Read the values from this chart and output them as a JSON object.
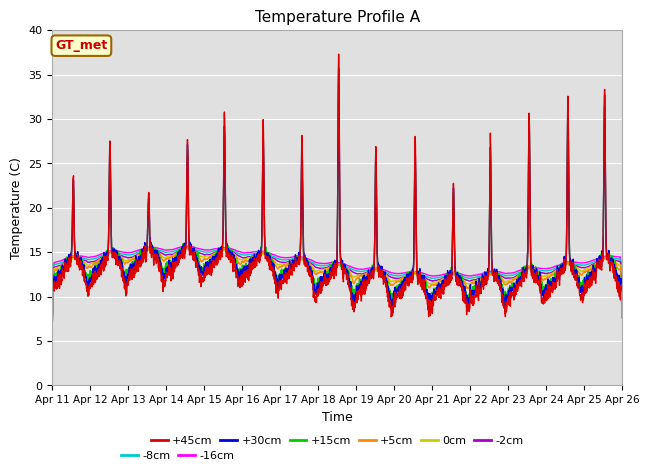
{
  "title": "Temperature Profile A",
  "xlabel": "Time",
  "ylabel": "Temperature (C)",
  "ylim": [
    0,
    40
  ],
  "annotation_text": "GT_met",
  "annotation_color": "#cc0000",
  "annotation_bg": "#ffffcc",
  "annotation_border": "#996600",
  "background_color": "#e0e0e0",
  "series_colors": {
    "+45cm": "#dd0000",
    "+30cm": "#0000dd",
    "+15cm": "#00cc00",
    "+5cm": "#ff8800",
    "0cm": "#cccc00",
    "-2cm": "#aa00cc",
    "-8cm": "#00cccc",
    "-16cm": "#ff00ff"
  },
  "x_tick_labels": [
    "Apr 11",
    "Apr 12",
    "Apr 13",
    "Apr 14",
    "Apr 15",
    "Apr 16",
    "Apr 17",
    "Apr 18",
    "Apr 19",
    "Apr 20",
    "Apr 21",
    "Apr 22",
    "Apr 23",
    "Apr 24",
    "Apr 25",
    "Apr 26"
  ],
  "n_days": 15,
  "points_per_day": 144,
  "legend_order": [
    "+45cm",
    "+30cm",
    "+15cm",
    "+5cm",
    "0cm",
    "-2cm",
    "-8cm",
    "-16cm"
  ]
}
